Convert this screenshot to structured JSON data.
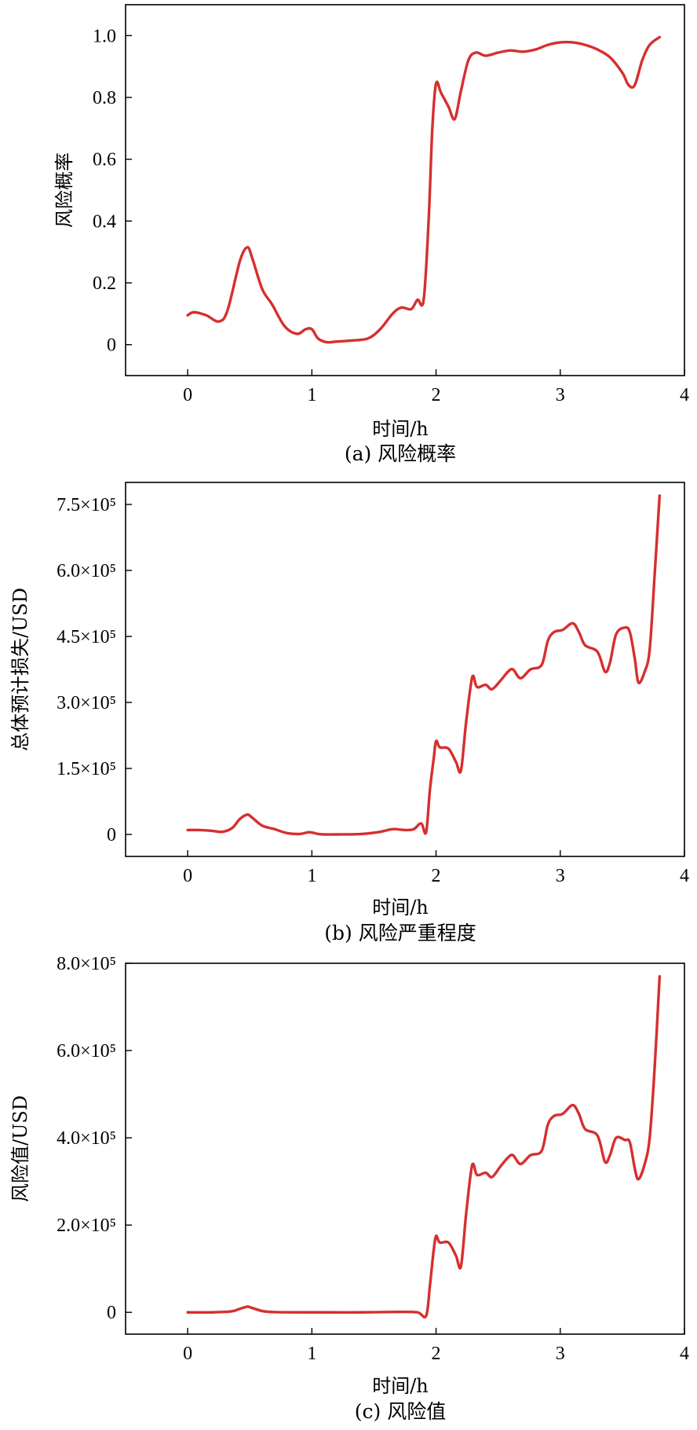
{
  "colors": {
    "line": "#d62f2f",
    "axis": "#000000",
    "background": "#ffffff"
  },
  "chart_data": [
    {
      "type": "line",
      "caption": "(a) 风险概率",
      "xlabel": "时间/h",
      "ylabel": "风险概率",
      "xlim": [
        -0.5,
        4
      ],
      "ylim": [
        -0.1,
        1.1
      ],
      "xticks": [
        0,
        1,
        2,
        3,
        4
      ],
      "xtick_labels": [
        "0",
        "1",
        "2",
        "3",
        "4"
      ],
      "yticks": [
        0,
        0.2,
        0.4,
        0.6,
        0.8,
        1.0
      ],
      "ytick_labels": [
        "0",
        "0.2",
        "0.4",
        "0.6",
        "0.8",
        "1.0"
      ],
      "grid": false,
      "series": [
        {
          "x": [
            0,
            0.05,
            0.15,
            0.25,
            0.32,
            0.42,
            0.48,
            0.52,
            0.6,
            0.68,
            0.78,
            0.88,
            0.95,
            1.0,
            1.05,
            1.12,
            1.2,
            1.3,
            1.45,
            1.55,
            1.65,
            1.72,
            1.8,
            1.85,
            1.9,
            1.94,
            1.97,
            2.0,
            2.04,
            2.1,
            2.15,
            2.2,
            2.26,
            2.32,
            2.4,
            2.5,
            2.6,
            2.7,
            2.8,
            2.9,
            3.0,
            3.1,
            3.2,
            3.3,
            3.4,
            3.5,
            3.55,
            3.6,
            3.66,
            3.72,
            3.8
          ],
          "y": [
            0.095,
            0.105,
            0.095,
            0.075,
            0.11,
            0.27,
            0.315,
            0.28,
            0.18,
            0.13,
            0.06,
            0.035,
            0.05,
            0.05,
            0.02,
            0.008,
            0.01,
            0.013,
            0.02,
            0.05,
            0.1,
            0.12,
            0.115,
            0.145,
            0.145,
            0.4,
            0.7,
            0.845,
            0.815,
            0.77,
            0.73,
            0.82,
            0.92,
            0.945,
            0.935,
            0.945,
            0.952,
            0.948,
            0.955,
            0.97,
            0.978,
            0.978,
            0.97,
            0.955,
            0.93,
            0.88,
            0.84,
            0.84,
            0.92,
            0.97,
            0.995
          ]
        }
      ]
    },
    {
      "type": "line",
      "caption": "(b) 风险严重程度",
      "xlabel": "时间/h",
      "ylabel": "总体预计损失/USD",
      "xlim": [
        -0.5,
        4
      ],
      "ylim": [
        -50000,
        800000
      ],
      "xticks": [
        0,
        1,
        2,
        3,
        4
      ],
      "xtick_labels": [
        "0",
        "1",
        "2",
        "3",
        "4"
      ],
      "yticks": [
        0,
        150000,
        300000,
        450000,
        600000,
        750000
      ],
      "ytick_labels": [
        "0",
        "1.5×10⁵",
        "3.0×10⁵",
        "4.5×10⁵",
        "6.0×10⁵",
        "7.5×10⁵"
      ],
      "grid": false,
      "series": [
        {
          "x": [
            0,
            0.1,
            0.2,
            0.28,
            0.36,
            0.42,
            0.48,
            0.52,
            0.6,
            0.7,
            0.8,
            0.9,
            0.98,
            1.05,
            1.1,
            1.2,
            1.4,
            1.55,
            1.65,
            1.75,
            1.82,
            1.88,
            1.92,
            1.95,
            1.98,
            2.0,
            2.03,
            2.1,
            2.16,
            2.2,
            2.24,
            2.28,
            2.3,
            2.33,
            2.4,
            2.45,
            2.52,
            2.58,
            2.62,
            2.68,
            2.76,
            2.85,
            2.9,
            2.95,
            3.02,
            3.1,
            3.15,
            3.2,
            3.3,
            3.36,
            3.4,
            3.45,
            3.52,
            3.56,
            3.6,
            3.63,
            3.68,
            3.72,
            3.76,
            3.8
          ],
          "y": [
            10000,
            10000,
            8000,
            6000,
            15000,
            35000,
            45000,
            38000,
            20000,
            12000,
            3000,
            1000,
            5000,
            1000,
            0,
            0,
            1000,
            6000,
            12000,
            10000,
            12000,
            25000,
            5000,
            100000,
            170000,
            212000,
            198000,
            195000,
            165000,
            145000,
            250000,
            340000,
            360000,
            335000,
            340000,
            330000,
            350000,
            370000,
            375000,
            355000,
            375000,
            385000,
            440000,
            460000,
            465000,
            480000,
            460000,
            430000,
            415000,
            370000,
            390000,
            455000,
            470000,
            460000,
            400000,
            345000,
            370000,
            420000,
            590000,
            770000
          ]
        }
      ]
    },
    {
      "type": "line",
      "caption": "(c) 风险值",
      "xlabel": "时间/h",
      "ylabel": "风险值/USD",
      "xlim": [
        -0.5,
        4
      ],
      "ylim": [
        -50000,
        800000
      ],
      "xticks": [
        0,
        1,
        2,
        3,
        4
      ],
      "xtick_labels": [
        "0",
        "1",
        "2",
        "3",
        "4"
      ],
      "yticks": [
        0,
        200000,
        400000,
        600000,
        800000
      ],
      "ytick_labels": [
        "0",
        "2.0×10⁵",
        "4.0×10⁵",
        "6.0×10⁵",
        "8.0×10⁵"
      ],
      "grid": false,
      "series": [
        {
          "x": [
            0,
            0.2,
            0.35,
            0.42,
            0.48,
            0.52,
            0.6,
            0.7,
            0.9,
            1.1,
            1.4,
            1.7,
            1.85,
            1.92,
            1.95,
            1.98,
            2.0,
            2.03,
            2.1,
            2.16,
            2.2,
            2.24,
            2.28,
            2.3,
            2.33,
            2.4,
            2.45,
            2.52,
            2.58,
            2.62,
            2.68,
            2.76,
            2.85,
            2.9,
            2.95,
            3.02,
            3.1,
            3.15,
            3.2,
            3.3,
            3.36,
            3.4,
            3.45,
            3.52,
            3.56,
            3.6,
            3.63,
            3.68,
            3.72,
            3.76,
            3.8
          ],
          "y": [
            0,
            0,
            2000,
            8000,
            13000,
            10000,
            3000,
            500,
            0,
            0,
            0,
            1000,
            0,
            -8000,
            60000,
            140000,
            175000,
            160000,
            160000,
            130000,
            105000,
            220000,
            320000,
            340000,
            315000,
            320000,
            310000,
            335000,
            355000,
            360000,
            340000,
            360000,
            370000,
            430000,
            450000,
            455000,
            475000,
            455000,
            420000,
            405000,
            345000,
            360000,
            400000,
            395000,
            390000,
            330000,
            305000,
            340000,
            400000,
            560000,
            770000
          ]
        }
      ]
    }
  ]
}
